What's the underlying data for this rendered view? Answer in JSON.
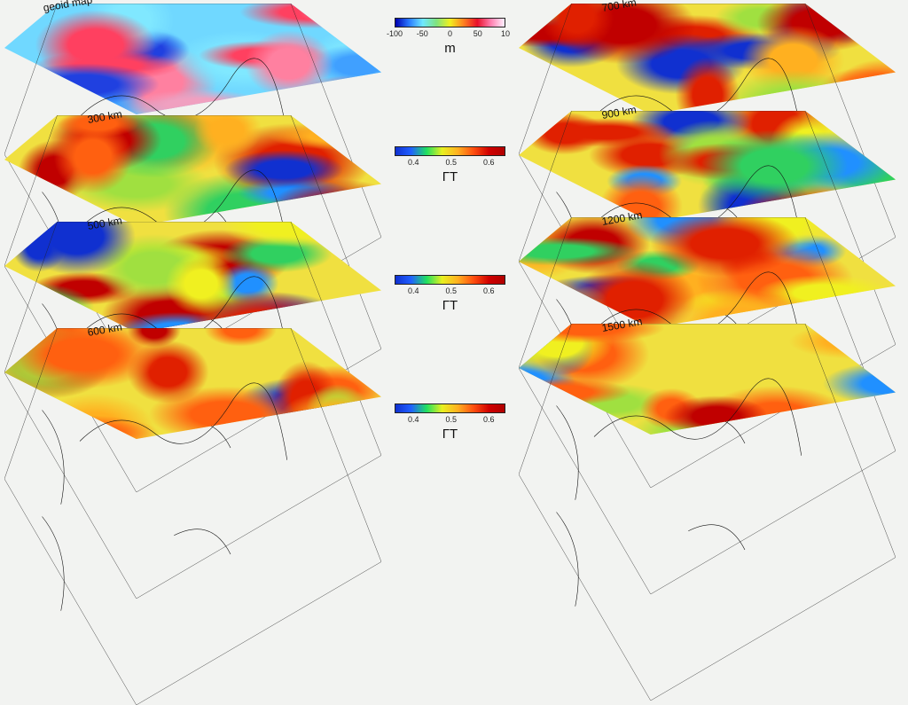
{
  "panels": [
    {
      "label": "geoid map",
      "type": "geoid"
    },
    {
      "label": "300 km",
      "type": "t"
    },
    {
      "label": "500 km",
      "type": "t"
    },
    {
      "label": "600 km",
      "type": "t"
    },
    {
      "label": "700 km",
      "type": "t"
    },
    {
      "label": "900 km",
      "type": "t"
    },
    {
      "label": "1200 km",
      "type": "t"
    },
    {
      "label": "1500 km",
      "type": "t"
    }
  ],
  "colorbars": [
    {
      "ticks": [
        "-100",
        "-50",
        "0",
        "50",
        "10"
      ],
      "unit": "m",
      "colors": [
        "#0000b0",
        "#2a7bff",
        "#6fe8ff",
        "#7fe37f",
        "#f0f020",
        "#ff8020",
        "#e8102a",
        "#ff80b0",
        "#fff0ff"
      ]
    },
    {
      "ticks": [
        "0.4",
        "0.5",
        "0.6"
      ],
      "unit": "ΓT",
      "colors": [
        "#1030d0",
        "#2060ff",
        "#20e060",
        "#e8f020",
        "#ffb020",
        "#ff5010",
        "#d00000",
        "#b00000"
      ]
    },
    {
      "ticks": [
        "0.4",
        "0.5",
        "0.6"
      ],
      "unit": "ΓT",
      "colors": [
        "#1030d0",
        "#2060ff",
        "#20e060",
        "#e8f020",
        "#ffb020",
        "#ff5010",
        "#d00000",
        "#b00000"
      ]
    },
    {
      "ticks": [
        "0.4",
        "0.5",
        "0.6"
      ],
      "unit": "ΓT",
      "colors": [
        "#1030d0",
        "#2060ff",
        "#20e060",
        "#e8f020",
        "#ffb020",
        "#ff5010",
        "#d00000",
        "#b00000"
      ]
    }
  ]
}
